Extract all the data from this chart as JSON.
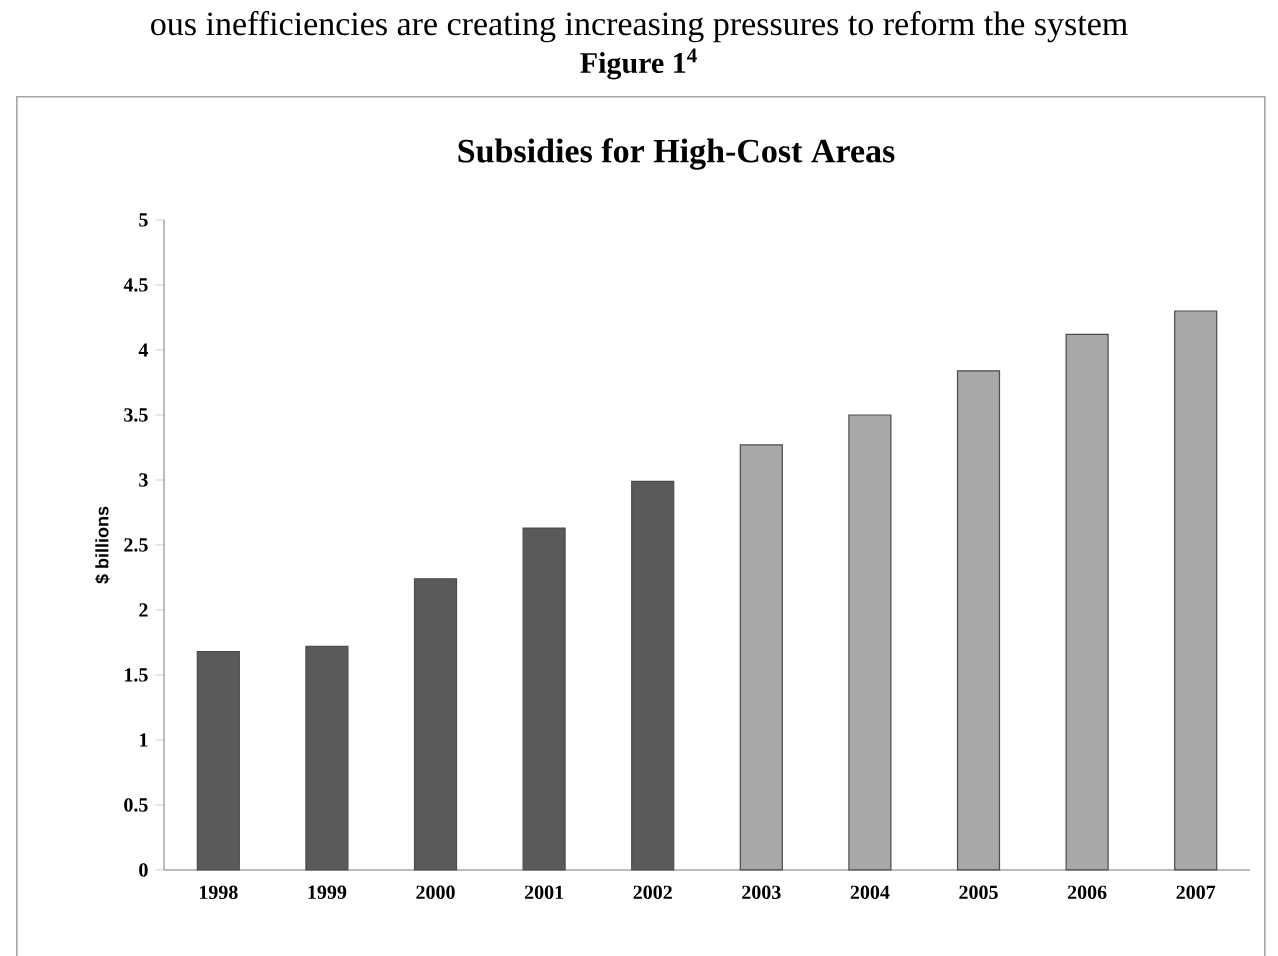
{
  "chart_data": {
    "type": "bar",
    "title": "Subsidies for High-Cost Areas",
    "ylabel": "$ billions",
    "annotations": [
      "ous inefficiencies are creating increasing pressures to reform the system",
      "Figure 1$^{4}$"
    ],
    "categories": [
      "1998",
      "1999",
      "2000",
      "2001",
      "2002",
      "2003",
      "2004",
      "2005",
      "2006",
      "2007"
    ],
    "values": [
      1.68,
      1.72,
      2.24,
      2.63,
      2.99,
      3.27,
      3.5,
      3.84,
      4.12,
      4.3
    ],
    "colors": [
      "#5a5a5a",
      "#5a5a5a",
      "#5a5a5a",
      "#5a5a5a",
      "#5a5a5a",
      "#a8a8a8",
      "#a8a8a8",
      "#a8a8a8",
      "#a8a8a8",
      "#a8a8a8"
    ],
    "ylim": [
      0,
      5
    ],
    "yticks": [
      0,
      0.5,
      1,
      1.5,
      2,
      2.5,
      3,
      3.5,
      4,
      4.5,
      5
    ],
    "grid": false
  }
}
